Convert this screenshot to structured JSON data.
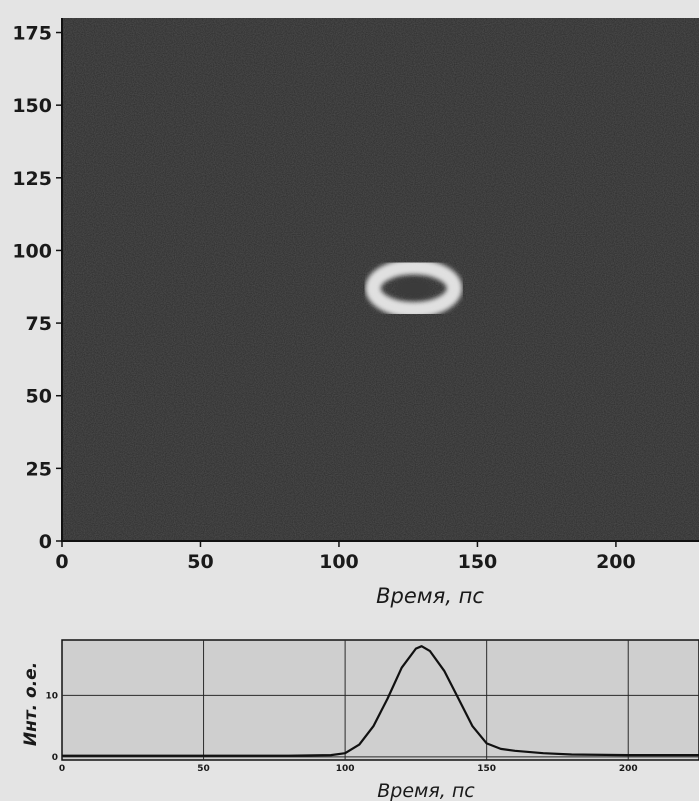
{
  "chart_data": [
    {
      "type": "heatmap",
      "title": "",
      "xlabel": "Время, пс",
      "ylabel": "",
      "xlim": [
        0,
        230
      ],
      "ylim": [
        0,
        180
      ],
      "x_ticks": [
        0,
        50,
        100,
        150,
        200
      ],
      "y_ticks": [
        0,
        25,
        50,
        75,
        100,
        125,
        150,
        175
      ],
      "grid": false,
      "colors": {
        "background": "#2b2b2b",
        "ring": "#f2f2f2",
        "core": "#3a3a3a"
      },
      "features": [
        {
          "shape": "ring",
          "x_center": 127,
          "y_center": 87,
          "x_radius": 14,
          "y_radius": 7
        }
      ]
    },
    {
      "type": "line",
      "title": "",
      "xlabel": "Время, пс",
      "ylabel": "Инт. о.е.",
      "xlim": [
        0,
        225
      ],
      "ylim": [
        -0.5,
        19
      ],
      "x_ticks": [
        0,
        50,
        100,
        150,
        200
      ],
      "y_ticks": [
        0,
        10
      ],
      "grid": true,
      "series": [
        {
          "x": [
            0,
            20,
            40,
            60,
            80,
            95,
            100,
            105,
            110,
            115,
            120,
            125,
            127,
            130,
            135,
            140,
            145,
            150,
            155,
            160,
            170,
            180,
            200,
            225
          ],
          "y": [
            0.2,
            0.2,
            0.2,
            0.2,
            0.2,
            0.3,
            0.6,
            2.0,
            5.0,
            9.5,
            14.5,
            17.6,
            18.0,
            17.2,
            14.0,
            9.5,
            5.0,
            2.2,
            1.3,
            1.0,
            0.6,
            0.4,
            0.3,
            0.3
          ]
        }
      ]
    }
  ]
}
